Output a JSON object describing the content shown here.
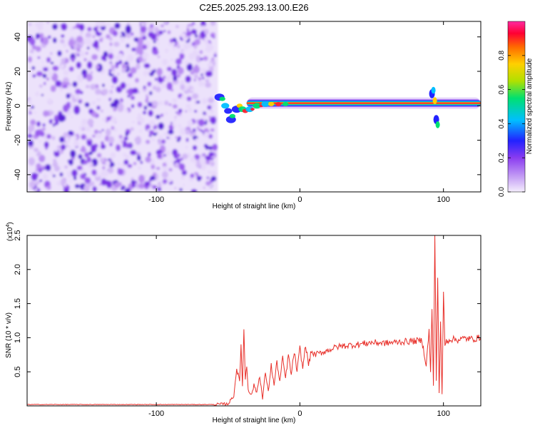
{
  "title": "C2E5.2025.293.13.00.E26",
  "colors": {
    "spectrogram_noise": "#6a2be0",
    "snr_line": "#e8302a",
    "colormap": [
      "#f5eefd",
      "#c9a6f5",
      "#8a3cf0",
      "#2222ff",
      "#00bfff",
      "#00e070",
      "#b0e000",
      "#ffd000",
      "#ff6a00",
      "#ff0033",
      "#ff2aa0"
    ]
  },
  "chart_data": [
    {
      "type": "heatmap",
      "title": "C2E5.2025.293.13.00.E26",
      "xlabel": "Height of straight line (km)",
      "ylabel": "Frequency (Hz)",
      "xlim": [
        -190,
        126
      ],
      "ylim": [
        -50,
        49
      ],
      "xticks": [
        -100,
        0,
        100
      ],
      "xtick_labels": [
        "-100",
        "0",
        "100"
      ],
      "yticks": [
        40,
        20,
        0,
        -20,
        -40
      ],
      "ytick_labels": [
        "40",
        "20",
        "0",
        "-20",
        "-40"
      ],
      "colorbar": {
        "label": "Normalized spectral amplitude",
        "range": [
          0,
          1
        ],
        "ticks": [
          0.0,
          0.2,
          0.4,
          0.6,
          0.8
        ],
        "tick_labels": [
          "0.0",
          "0.2",
          "0.4",
          "0.6",
          "0.8"
        ]
      },
      "regions": [
        {
          "x_range": [
            -190,
            -57
          ],
          "y_range": [
            -50,
            49
          ],
          "description_value": "broadband noise",
          "amplitude": 0.1
        },
        {
          "x_range": [
            -57,
            126
          ],
          "y_center": 1.5,
          "amplitude": 0.95
        }
      ]
    },
    {
      "type": "line",
      "xlabel": "Height of straight line (km)",
      "ylabel": "SNR (10 * v/v)",
      "y_multiplier": "(x10",
      "y_multiplier_exp": "4",
      "y_multiplier_close": ")",
      "xlim": [
        -190,
        126
      ],
      "ylim": [
        0,
        2.5
      ],
      "xticks": [
        -100,
        0,
        100
      ],
      "xtick_labels": [
        "-100",
        "0",
        "100"
      ],
      "yticks": [
        0.5,
        1.0,
        1.5,
        2.0,
        2.5
      ],
      "ytick_labels": [
        "0.5",
        "1.0",
        "1.5",
        "2.0",
        "2.5"
      ],
      "series": [
        {
          "x": [
            -190,
            -150,
            -100,
            -60,
            -50,
            -46,
            -44,
            -42,
            -41,
            -40,
            -39,
            -38,
            -37,
            -36,
            -34,
            -32,
            -30,
            -28,
            -26,
            -24,
            -22,
            -20,
            -18,
            -16,
            -14,
            -12,
            -10,
            -8,
            -6,
            -4,
            -2,
            0,
            2,
            4,
            6,
            8,
            10,
            15,
            20,
            25,
            30,
            40,
            50,
            60,
            70,
            80,
            85,
            88,
            90,
            91,
            92,
            93,
            94,
            95,
            96,
            97,
            98,
            99,
            100,
            101,
            102,
            105,
            110,
            115,
            120,
            126
          ],
          "y": [
            0.02,
            0.02,
            0.02,
            0.02,
            0.03,
            0.15,
            0.55,
            0.35,
            0.9,
            0.3,
            1.1,
            0.4,
            0.6,
            0.25,
            0.15,
            0.3,
            0.2,
            0.45,
            0.1,
            0.5,
            0.2,
            0.6,
            0.3,
            0.65,
            0.35,
            0.7,
            0.4,
            0.75,
            0.45,
            0.8,
            0.5,
            0.85,
            0.55,
            0.9,
            0.6,
            0.8,
            0.75,
            0.78,
            0.82,
            0.86,
            0.88,
            0.9,
            0.93,
            0.92,
            0.94,
            0.95,
            0.96,
            0.6,
            1.1,
            0.5,
            1.4,
            0.3,
            2.5,
            0.4,
            1.9,
            0.2,
            1.2,
            0.15,
            1.65,
            0.9,
            0.95,
            0.98,
            0.97,
            0.99,
            0.98,
            1.0
          ]
        }
      ]
    }
  ]
}
